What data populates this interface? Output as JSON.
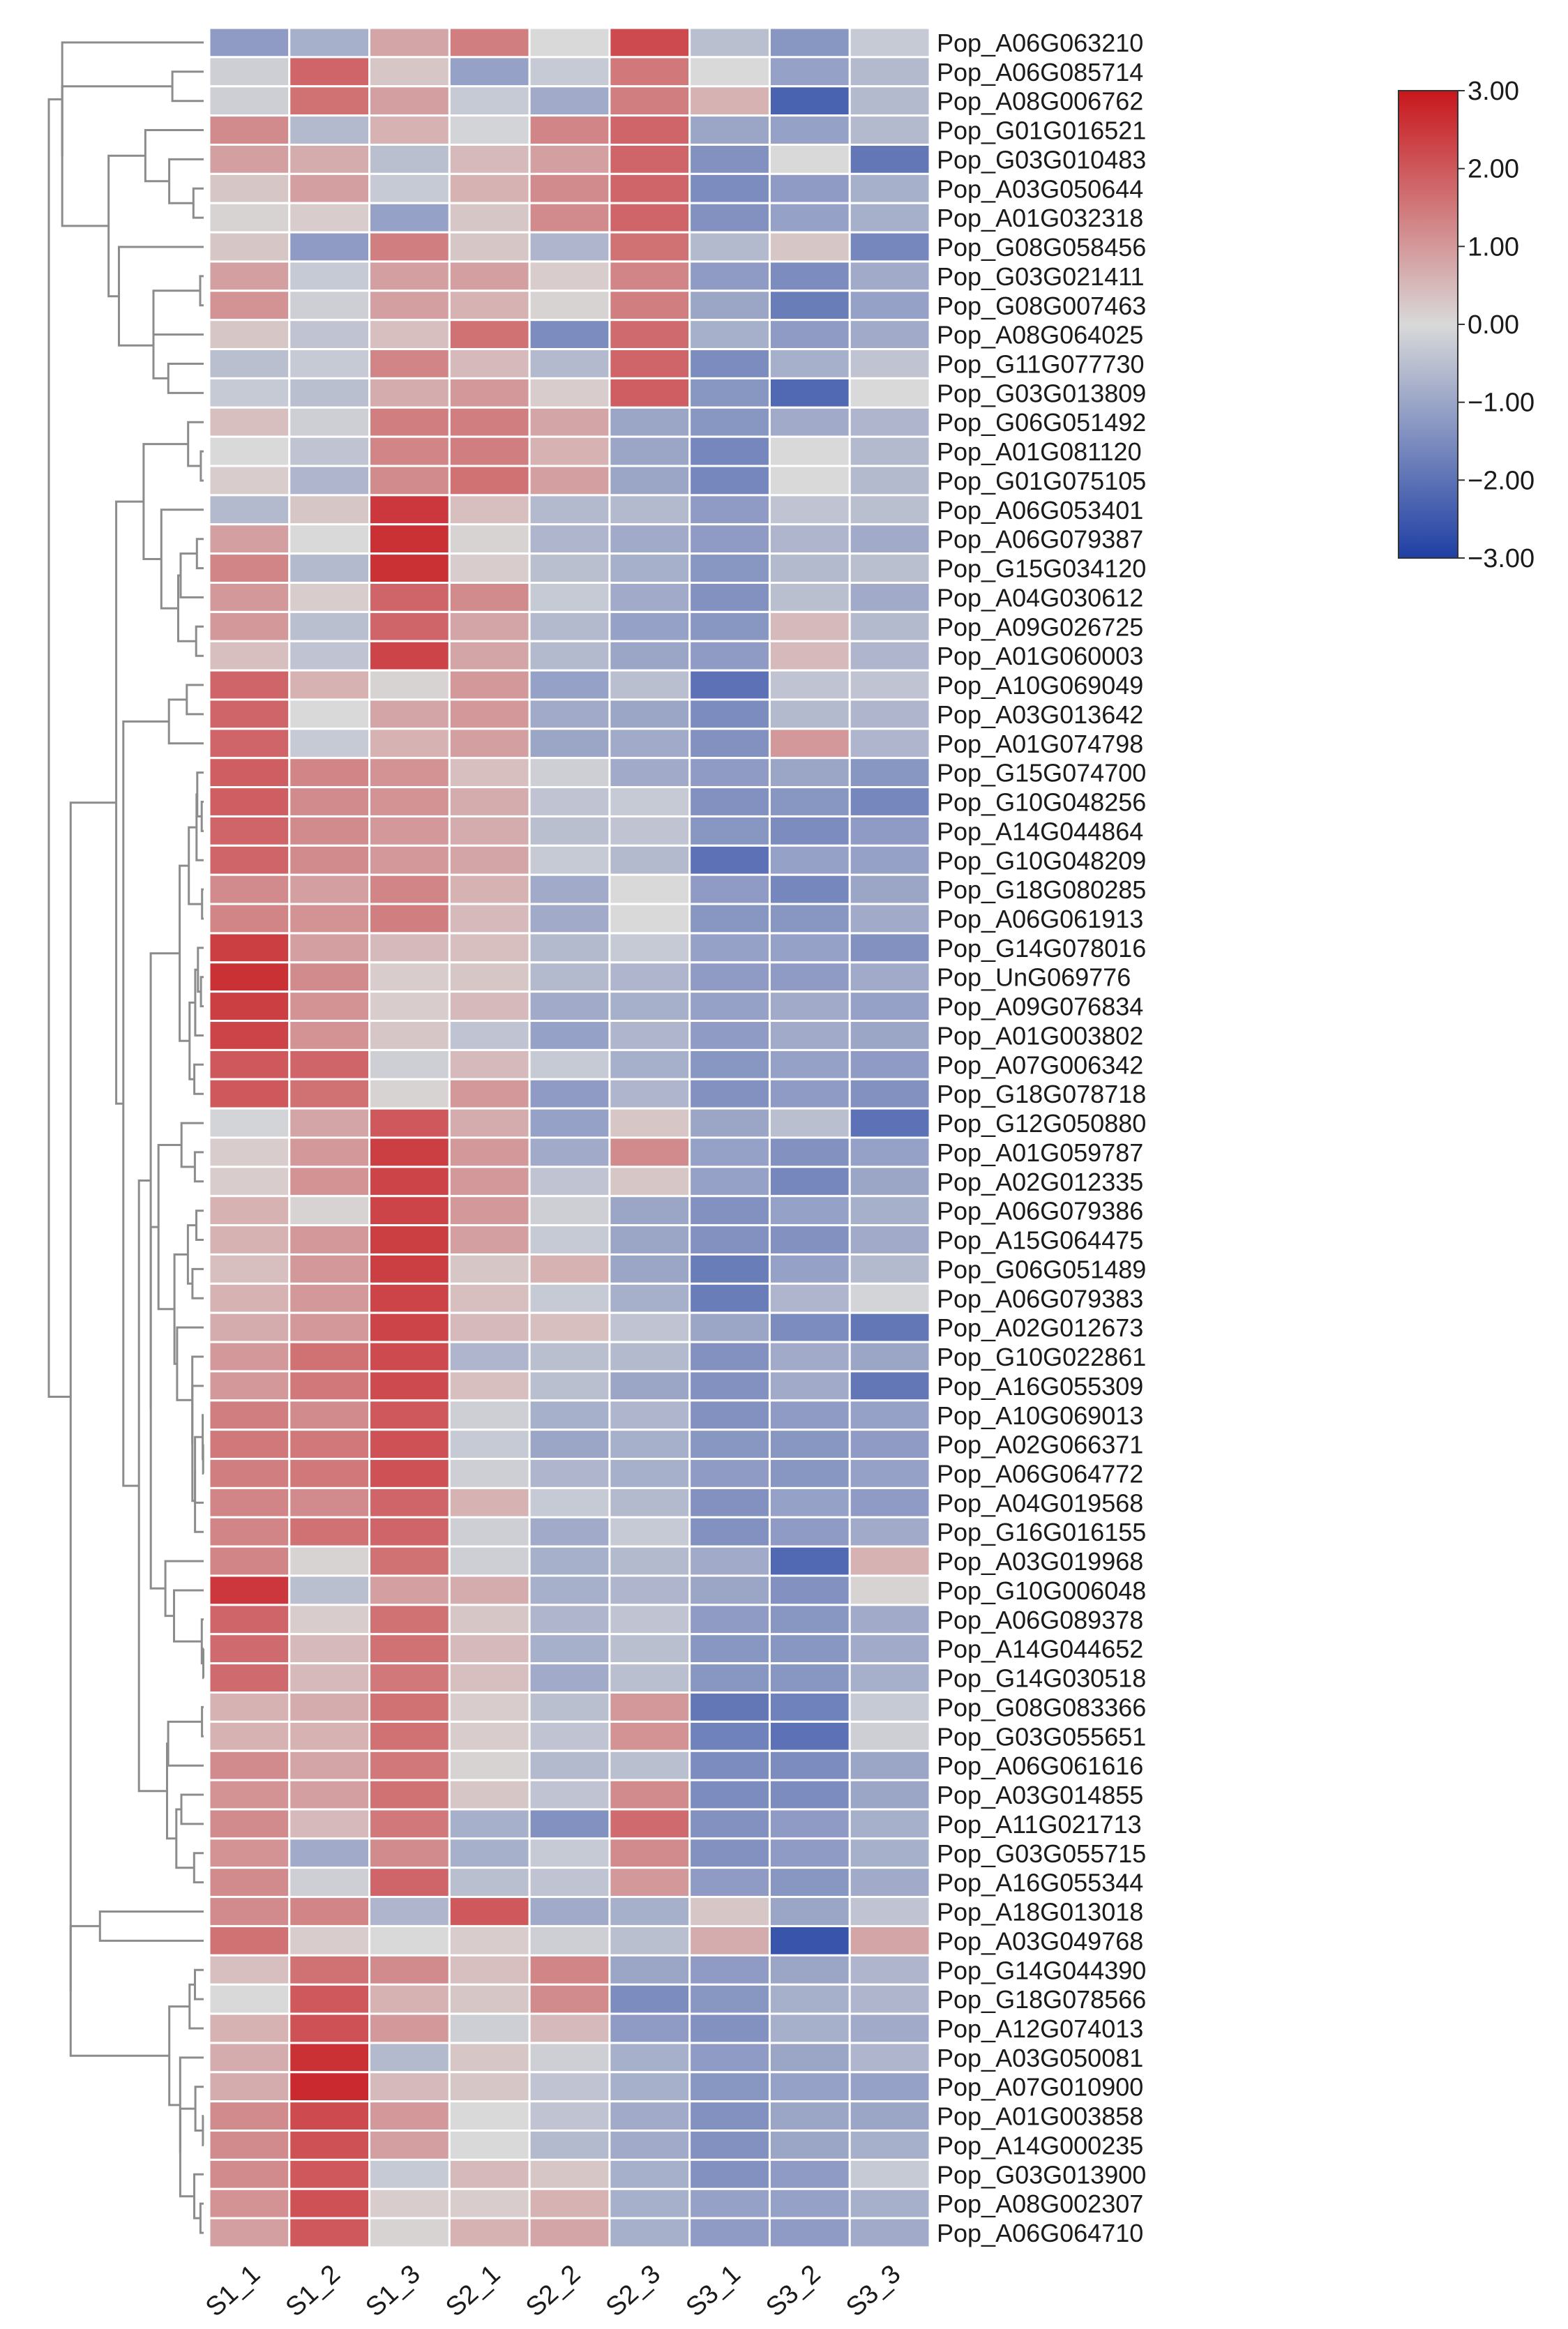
{
  "chart_data": {
    "type": "heatmap",
    "title": "",
    "xlabel": "",
    "ylabel": "",
    "columns": [
      "S1_1",
      "S1_2",
      "S1_3",
      "S2_1",
      "S2_2",
      "S2_3",
      "S3_1",
      "S3_2",
      "S3_3"
    ],
    "rows": [
      "Pop_A06G063210",
      "Pop_A06G085714",
      "Pop_A08G006762",
      "Pop_G01G016521",
      "Pop_G03G010483",
      "Pop_A03G050644",
      "Pop_A01G032318",
      "Pop_G08G058456",
      "Pop_G03G021411",
      "Pop_G08G007463",
      "Pop_A08G064025",
      "Pop_G11G077730",
      "Pop_G03G013809",
      "Pop_G06G051492",
      "Pop_A01G081120",
      "Pop_G01G075105",
      "Pop_A06G053401",
      "Pop_A06G079387",
      "Pop_G15G034120",
      "Pop_A04G030612",
      "Pop_A09G026725",
      "Pop_A01G060003",
      "Pop_A10G069049",
      "Pop_A03G013642",
      "Pop_A01G074798",
      "Pop_G15G074700",
      "Pop_G10G048256",
      "Pop_A14G044864",
      "Pop_G10G048209",
      "Pop_G18G080285",
      "Pop_A06G061913",
      "Pop_G14G078016",
      "Pop_UnG069776",
      "Pop_A09G076834",
      "Pop_A01G003802",
      "Pop_A07G006342",
      "Pop_G18G078718",
      "Pop_G12G050880",
      "Pop_A01G059787",
      "Pop_A02G012335",
      "Pop_A06G079386",
      "Pop_A15G064475",
      "Pop_G06G051489",
      "Pop_A06G079383",
      "Pop_A02G012673",
      "Pop_G10G022861",
      "Pop_A16G055309",
      "Pop_A10G069013",
      "Pop_A02G066371",
      "Pop_A06G064772",
      "Pop_A04G019568",
      "Pop_G16G016155",
      "Pop_A03G019968",
      "Pop_G10G006048",
      "Pop_A06G089378",
      "Pop_A14G044652",
      "Pop_G14G030518",
      "Pop_G08G083366",
      "Pop_G03G055651",
      "Pop_A06G061616",
      "Pop_A03G014855",
      "Pop_A11G021713",
      "Pop_G03G055715",
      "Pop_A16G055344",
      "Pop_A18G013018",
      "Pop_A03G049768",
      "Pop_G14G044390",
      "Pop_G18G078566",
      "Pop_A12G074013",
      "Pop_A03G050081",
      "Pop_A07G010900",
      "Pop_A01G003858",
      "Pop_A14G000235",
      "Pop_G03G013900",
      "Pop_A08G002307",
      "Pop_A06G064710"
    ],
    "values": [
      [
        -1.2,
        -0.8,
        0.8,
        1.4,
        0.0,
        2.2,
        -0.5,
        -1.3,
        -0.3
      ],
      [
        -0.2,
        1.8,
        0.3,
        -1.1,
        -0.3,
        1.5,
        0.0,
        -1.1,
        -0.6
      ],
      [
        -0.2,
        1.6,
        0.9,
        -0.3,
        -0.9,
        1.4,
        0.6,
        -2.3,
        -0.6
      ],
      [
        1.2,
        -0.6,
        0.6,
        -0.1,
        1.3,
        1.8,
        -1.0,
        -1.1,
        -0.6
      ],
      [
        0.9,
        0.7,
        -0.5,
        0.5,
        0.9,
        1.8,
        -1.4,
        0.0,
        -1.9
      ],
      [
        0.3,
        0.9,
        -0.3,
        0.6,
        1.2,
        1.8,
        -1.5,
        -1.2,
        -0.8
      ],
      [
        0.1,
        0.2,
        -1.1,
        0.3,
        1.2,
        1.8,
        -1.4,
        -1.1,
        -0.8
      ],
      [
        0.3,
        -1.2,
        1.4,
        0.3,
        -0.7,
        1.6,
        -0.6,
        0.3,
        -1.6
      ],
      [
        0.9,
        -0.3,
        0.9,
        0.9,
        0.2,
        1.3,
        -1.2,
        -1.5,
        -0.9
      ],
      [
        1.1,
        -0.2,
        0.9,
        0.6,
        0.1,
        1.4,
        -1.0,
        -1.8,
        -1.1
      ],
      [
        0.3,
        -0.4,
        0.4,
        1.6,
        -1.5,
        1.7,
        -0.8,
        -1.2,
        -0.9
      ],
      [
        -0.5,
        -0.3,
        1.3,
        0.5,
        -0.6,
        1.8,
        -1.5,
        -0.8,
        -0.4
      ],
      [
        -0.3,
        -0.5,
        0.7,
        1.0,
        0.2,
        1.9,
        -1.3,
        -2.2,
        0.0
      ],
      [
        0.4,
        -0.2,
        1.4,
        1.4,
        0.8,
        -1.0,
        -1.3,
        -0.9,
        -0.7
      ],
      [
        0.0,
        -0.4,
        1.3,
        1.4,
        0.6,
        -1.0,
        -1.6,
        0.0,
        -0.6
      ],
      [
        0.2,
        -0.7,
        1.2,
        1.6,
        0.9,
        -1.0,
        -1.6,
        0.0,
        -0.6
      ],
      [
        -0.6,
        0.3,
        2.5,
        0.4,
        -0.6,
        -0.6,
        -1.2,
        -0.4,
        -0.5
      ],
      [
        0.9,
        0.0,
        2.6,
        0.1,
        -0.7,
        -0.9,
        -1.2,
        -0.7,
        -0.9
      ],
      [
        1.3,
        -0.6,
        2.6,
        0.2,
        -0.5,
        -0.8,
        -1.3,
        -0.6,
        -0.5
      ],
      [
        1.0,
        0.2,
        1.8,
        1.2,
        -0.3,
        -0.9,
        -1.4,
        -0.5,
        -0.9
      ],
      [
        1.0,
        -0.5,
        1.8,
        0.8,
        -0.6,
        -1.1,
        -1.3,
        0.5,
        -0.6
      ],
      [
        0.4,
        -0.4,
        2.3,
        0.8,
        -0.6,
        -1.0,
        -1.2,
        0.5,
        -0.7
      ],
      [
        1.8,
        0.6,
        0.1,
        1.0,
        -1.1,
        -0.5,
        -2.0,
        -0.4,
        -0.4
      ],
      [
        1.8,
        0.0,
        0.8,
        1.0,
        -0.9,
        -1.0,
        -1.5,
        -0.6,
        -0.7
      ],
      [
        1.8,
        -0.3,
        0.6,
        0.9,
        -1.0,
        -0.9,
        -1.4,
        1.0,
        -0.7
      ],
      [
        1.9,
        1.3,
        1.1,
        0.4,
        -0.2,
        -0.9,
        -1.2,
        -1.0,
        -1.3
      ],
      [
        1.9,
        1.2,
        1.1,
        0.7,
        -0.4,
        -0.3,
        -1.4,
        -1.3,
        -1.6
      ],
      [
        1.8,
        1.2,
        1.0,
        0.7,
        -0.5,
        -0.4,
        -1.3,
        -1.5,
        -1.2
      ],
      [
        1.8,
        1.2,
        1.0,
        0.8,
        -0.3,
        -0.6,
        -2.0,
        -1.1,
        -1.1
      ],
      [
        1.2,
        0.9,
        1.3,
        0.6,
        -0.9,
        0.0,
        -1.2,
        -1.6,
        -1.0
      ],
      [
        1.3,
        1.1,
        1.4,
        0.5,
        -0.9,
        0.0,
        -1.3,
        -1.3,
        -0.9
      ],
      [
        2.4,
        0.9,
        0.5,
        0.4,
        -0.6,
        -0.3,
        -1.1,
        -1.1,
        -1.4
      ],
      [
        2.6,
        1.2,
        0.2,
        0.3,
        -0.6,
        -0.7,
        -1.2,
        -1.2,
        -0.9
      ],
      [
        2.4,
        1.1,
        0.2,
        0.5,
        -0.9,
        -0.8,
        -1.1,
        -0.9,
        -1.1
      ],
      [
        2.3,
        1.1,
        0.3,
        -0.4,
        -1.1,
        -0.7,
        -1.2,
        -0.9,
        -1.0
      ],
      [
        2.0,
        1.8,
        -0.2,
        0.5,
        -0.3,
        -0.8,
        -1.3,
        -1.1,
        -1.2
      ],
      [
        2.0,
        1.6,
        0.1,
        1.0,
        -1.2,
        -0.7,
        -1.4,
        -1.2,
        -1.4
      ],
      [
        -0.1,
        0.8,
        2.0,
        0.7,
        -1.1,
        0.3,
        -1.0,
        -0.5,
        -2.0
      ],
      [
        0.2,
        1.0,
        2.4,
        1.0,
        -0.9,
        1.2,
        -1.1,
        -1.4,
        -1.1
      ],
      [
        0.2,
        1.1,
        2.3,
        1.0,
        -0.4,
        0.3,
        -1.1,
        -1.6,
        -1.0
      ],
      [
        0.6,
        0.1,
        2.3,
        1.0,
        -0.2,
        -1.0,
        -1.4,
        -1.1,
        -0.8
      ],
      [
        0.6,
        1.0,
        2.4,
        0.9,
        -0.3,
        -1.0,
        -1.4,
        -1.4,
        -0.9
      ],
      [
        0.4,
        1.0,
        2.4,
        0.3,
        0.6,
        -1.0,
        -1.8,
        -1.1,
        -0.6
      ],
      [
        0.6,
        1.0,
        2.3,
        0.4,
        -0.3,
        -0.8,
        -1.8,
        -0.7,
        -0.1
      ],
      [
        0.7,
        1.0,
        2.3,
        0.5,
        0.4,
        -0.4,
        -1.0,
        -1.5,
        -1.9
      ],
      [
        1.0,
        1.6,
        2.2,
        -0.7,
        -0.5,
        -0.6,
        -1.4,
        -0.9,
        -1.0
      ],
      [
        1.0,
        1.5,
        2.2,
        0.4,
        -0.5,
        -1.0,
        -1.4,
        -0.9,
        -1.9
      ],
      [
        1.4,
        1.2,
        2.0,
        -0.2,
        -0.8,
        -0.7,
        -1.4,
        -1.2,
        -1.1
      ],
      [
        1.5,
        1.5,
        2.1,
        -0.3,
        -1.0,
        -0.8,
        -1.3,
        -1.3,
        -1.2
      ],
      [
        1.4,
        1.5,
        2.1,
        -0.2,
        -0.7,
        -0.8,
        -1.2,
        -1.3,
        -1.1
      ],
      [
        1.3,
        1.2,
        1.8,
        0.6,
        -0.3,
        -0.6,
        -1.4,
        -1.1,
        -1.2
      ],
      [
        1.3,
        1.6,
        1.8,
        -0.2,
        -0.9,
        -0.3,
        -1.4,
        -1.2,
        -0.9
      ],
      [
        1.3,
        0.1,
        1.6,
        -0.2,
        -0.8,
        -0.6,
        -0.9,
        -2.2,
        0.6
      ],
      [
        2.5,
        -0.5,
        0.9,
        0.7,
        -0.8,
        -0.7,
        -1.0,
        -1.4,
        0.1
      ],
      [
        1.8,
        0.2,
        1.6,
        0.3,
        -0.7,
        -0.4,
        -1.2,
        -1.3,
        -0.9
      ],
      [
        1.7,
        0.5,
        1.6,
        0.5,
        -0.8,
        -0.5,
        -1.3,
        -1.3,
        -0.9
      ],
      [
        1.7,
        0.5,
        1.5,
        0.4,
        -0.9,
        -0.5,
        -1.3,
        -1.3,
        -0.8
      ],
      [
        0.6,
        0.7,
        1.6,
        0.2,
        -0.5,
        1.0,
        -1.9,
        -1.7,
        -0.3
      ],
      [
        0.6,
        0.6,
        1.6,
        0.2,
        -0.4,
        1.1,
        -1.7,
        -2.0,
        -0.2
      ],
      [
        1.2,
        0.8,
        1.5,
        0.1,
        -0.6,
        -0.5,
        -1.5,
        -1.5,
        -1.0
      ],
      [
        1.1,
        0.9,
        1.6,
        0.3,
        -0.4,
        1.2,
        -1.5,
        -1.5,
        -1.0
      ],
      [
        1.2,
        0.5,
        1.5,
        -0.8,
        -1.4,
        1.7,
        -1.4,
        -1.2,
        -0.8
      ],
      [
        1.1,
        -0.9,
        1.2,
        -0.8,
        -0.3,
        1.2,
        -1.4,
        -1.2,
        -0.8
      ],
      [
        1.2,
        -0.2,
        1.8,
        -0.5,
        -0.4,
        1.0,
        -1.2,
        -1.3,
        -0.9
      ],
      [
        1.2,
        1.3,
        -0.7,
        2.0,
        -0.9,
        -0.8,
        0.3,
        -1.0,
        -0.4
      ],
      [
        1.6,
        0.2,
        0.0,
        0.2,
        -0.2,
        -0.5,
        0.7,
        -2.6,
        0.8
      ],
      [
        0.4,
        1.6,
        1.2,
        0.4,
        1.3,
        -1.0,
        -1.2,
        -1.0,
        -0.7
      ],
      [
        0.0,
        2.0,
        0.6,
        0.3,
        1.2,
        -1.5,
        -1.3,
        -0.8,
        -0.7
      ],
      [
        0.6,
        2.1,
        1.0,
        -0.2,
        0.5,
        -1.2,
        -1.4,
        -0.8,
        -0.9
      ],
      [
        0.7,
        2.6,
        -0.6,
        0.3,
        -0.2,
        -0.8,
        -1.2,
        -1.0,
        -0.7
      ],
      [
        0.7,
        2.7,
        0.5,
        0.3,
        -0.4,
        -0.8,
        -1.3,
        -1.1,
        -1.1
      ],
      [
        1.2,
        2.2,
        1.0,
        0.0,
        -0.4,
        -0.9,
        -1.4,
        -1.0,
        -1.0
      ],
      [
        1.2,
        2.1,
        0.9,
        0.0,
        -0.6,
        -0.9,
        -1.4,
        -1.0,
        -0.8
      ],
      [
        1.2,
        2.0,
        -0.3,
        0.5,
        0.3,
        -0.8,
        -1.4,
        -1.2,
        -0.3
      ],
      [
        1.1,
        2.1,
        0.2,
        0.2,
        0.6,
        -0.8,
        -1.1,
        -1.1,
        -0.8
      ],
      [
        0.9,
        2.0,
        0.1,
        0.6,
        0.8,
        -0.8,
        -1.2,
        -1.2,
        -0.9
      ]
    ],
    "color_scale": {
      "min": -3.0,
      "max": 3.0,
      "low_color": "#1f3fa4",
      "mid_color": "#d9d9d9",
      "high_color": "#c8171c",
      "tick_labels": [
        "3.00",
        "2.00",
        "1.00",
        "0.00",
        "−1.00",
        "−2.00",
        "−3.00"
      ],
      "tick_values": [
        3,
        2,
        1,
        0,
        -1,
        -2,
        -3
      ]
    },
    "cell_border_color": "#ffffff",
    "dendrogram_color": "#8c8c8c",
    "row_dendrogram": true
  }
}
